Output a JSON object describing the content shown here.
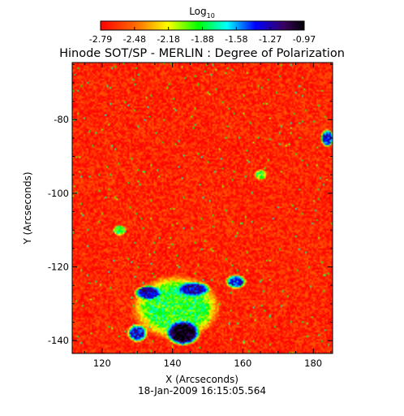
{
  "chart_data": {
    "type": "heatmap",
    "title": "Hinode SOT/SP - MERLIN : Degree of Polarization",
    "subtitle": "18-Jan-2009 16:15:05.564",
    "xlabel": "X (Arcseconds)",
    "ylabel": "Y (Arcseconds)",
    "xlim": [
      111.5,
      185.5
    ],
    "ylim": [
      -143.5,
      -64.5
    ],
    "xticks": [
      120,
      140,
      160,
      180
    ],
    "yticks": [
      -140,
      -120,
      -100,
      -80
    ],
    "colorbar": {
      "label_base": "Log",
      "label_sub": "10",
      "ticks": [
        "-2.79",
        "-2.48",
        "-2.18",
        "-1.88",
        "-1.58",
        "-1.27",
        "-0.97"
      ],
      "range": [
        -2.79,
        -0.97
      ],
      "colormap": "rainbow (red → yellow → green → cyan → blue → black)"
    },
    "features": [
      {
        "x": 141,
        "y": -131,
        "rx": 13,
        "ry": 9,
        "level": -1.9
      },
      {
        "x": 143,
        "y": -138,
        "rx": 5,
        "ry": 3.5,
        "level": -0.97
      },
      {
        "x": 133,
        "y": -127,
        "rx": 4,
        "ry": 2,
        "level": -1.25
      },
      {
        "x": 146,
        "y": -126,
        "rx": 5,
        "ry": 2,
        "level": -1.3
      },
      {
        "x": 158,
        "y": -124,
        "rx": 3,
        "ry": 2,
        "level": -1.4
      },
      {
        "x": 130,
        "y": -138,
        "rx": 3,
        "ry": 2.5,
        "level": -1.35
      },
      {
        "x": 184,
        "y": -85,
        "rx": 2,
        "ry": 2.5,
        "level": -1.4
      },
      {
        "x": 125,
        "y": -110,
        "rx": 2,
        "ry": 1.5,
        "level": -1.9
      },
      {
        "x": 165,
        "y": -95,
        "rx": 2,
        "ry": 1.5,
        "level": -2.0
      }
    ],
    "colors": {
      "background_level": "#ff2a00",
      "colorbar_stops": [
        "#ff0000",
        "#ff8000",
        "#ffff00",
        "#00ff00",
        "#00ffff",
        "#0000ff",
        "#400060",
        "#000000"
      ]
    }
  }
}
